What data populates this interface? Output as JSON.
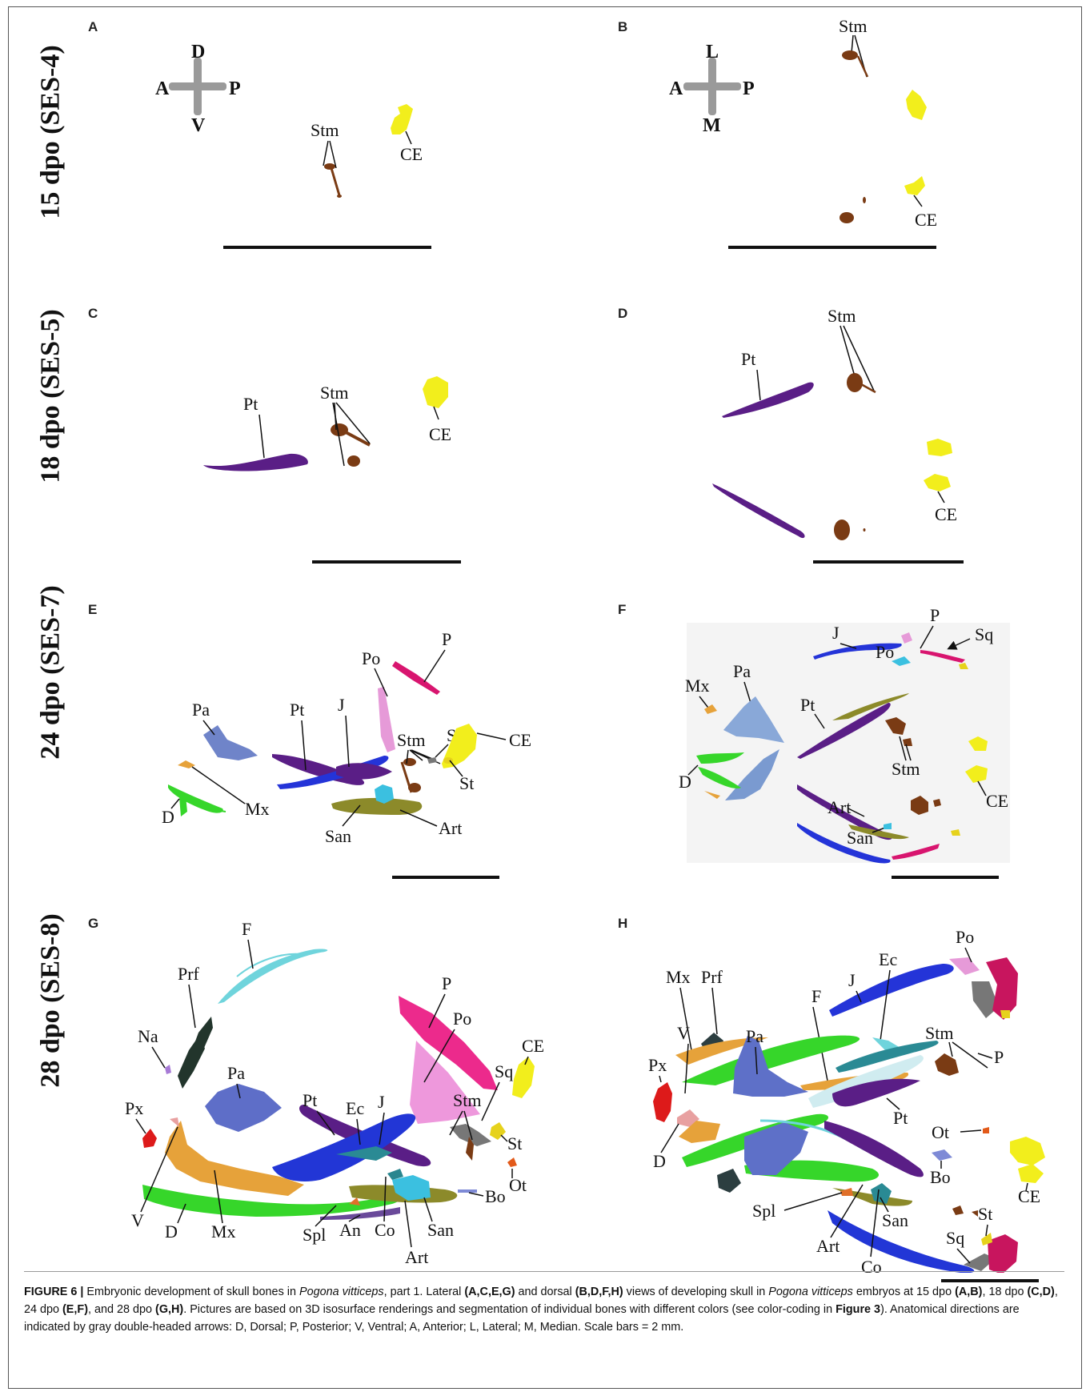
{
  "figure": {
    "row_labels": [
      "15 dpo (SES-4)",
      "18 dpo (SES-5)",
      "24 dpo (SES-7)",
      "28 dpo (SES-8)"
    ],
    "panel_letters": [
      "A",
      "B",
      "C",
      "D",
      "E",
      "F",
      "G",
      "H"
    ],
    "compass_lateral": {
      "top": "D",
      "bottom": "V",
      "left": "A",
      "right": "P"
    },
    "compass_dorsal": {
      "top": "L",
      "bottom": "M",
      "left": "A",
      "right": "P"
    },
    "labels": {
      "A": [
        "Stm",
        "CE"
      ],
      "B": [
        "Stm",
        "CE"
      ],
      "C": [
        "Pt",
        "Stm",
        "CE"
      ],
      "D": [
        "Pt",
        "Stm",
        "CE"
      ],
      "E": [
        "P",
        "Po",
        "Pa",
        "Pt",
        "J",
        "Stm",
        "Sq",
        "CE",
        "St",
        "D",
        "Mx",
        "San",
        "Art"
      ],
      "F": [
        "J",
        "P",
        "Sq",
        "Po",
        "Mx",
        "Pa",
        "Pt",
        "Stm",
        "D",
        "CE",
        "Art",
        "San"
      ],
      "G": [
        "F",
        "P",
        "Prf",
        "Po",
        "Na",
        "CE",
        "Pa",
        "Sq",
        "Stm",
        "Px",
        "Pt",
        "Ec",
        "J",
        "St",
        "Ot",
        "Bo",
        "V",
        "D",
        "Mx",
        "Spl",
        "An",
        "Co",
        "San",
        "Art"
      ],
      "H": [
        "Po",
        "J",
        "Ec",
        "Mx",
        "Prf",
        "F",
        "Pa",
        "Stm",
        "V",
        "P",
        "Px",
        "Pt",
        "Ot",
        "D",
        "Bo",
        "CE",
        "Spl",
        "San",
        "St",
        "Art",
        "Co",
        "Sq"
      ]
    },
    "bone_colors": {
      "Stm": "#7a3b14",
      "CE": "#f2ee1c",
      "Pt": "#5a1e86",
      "Pa": "#6f84c9",
      "Mx": "#e6a23a",
      "D": "#36d62a",
      "J": "#2434d8",
      "Po": "#e69ad8",
      "P": "#d8156f",
      "Sq": "#777777",
      "San": "#3bc0e0",
      "Art": "#8c8a2a",
      "F": "#6fd4dc",
      "Prf": "#22352c",
      "Na": "#a77ad6",
      "Px": "#dd1a1a",
      "V": "#e8a0a0",
      "Ec": "#2a8a94",
      "Co": "#29868f",
      "Bo": "#7e8ad6",
      "Ot": "#e25a1a",
      "St": "#e6d21c",
      "Spl": "#e0702a",
      "An": "#6a4a9a"
    }
  },
  "caption": {
    "title": "FIGURE 6 | ",
    "text": "Embryonic development of skull bones in Pogona vitticeps, part 1. Lateral (A,C,E,G) and dorsal (B,D,F,H) views of developing skull in Pogona vitticeps embryos at 15 dpo (A,B), 18 dpo (C,D), 24 dpo (E,F), and 28 dpo (G,H). Pictures are based on 3D isosurface renderings and segmentation of individual bones with different colors (see color-coding in Figure 3). Anatomical directions are indicated by gray double-headed arrows: D, Dorsal; P, Posterior; V, Ventral; A, Anterior; L, Lateral; M, Median. Scale bars = 2 mm.",
    "segments": {
      "s1": "Embryonic development of skull bones in ",
      "species": "Pogona vitticeps",
      "s2": ", part 1. Lateral ",
      "b1": "(A,C,E,G)",
      "s3": " and dorsal ",
      "b2": "(B,D,F,H)",
      "s4": " views of developing skull in ",
      "s5": " embryos at 15 dpo ",
      "b3": "(A,B)",
      "s6": ", 18 dpo ",
      "b4": "(C,D)",
      "s7": ", 24 dpo ",
      "b5": "(E,F)",
      "s8": ", and 28 dpo ",
      "b6": "(G,H)",
      "s9": ". Pictures are based on 3D isosurface renderings and segmentation of individual bones with different colors (see color-coding in ",
      "b7": "Figure 3",
      "s10": "). Anatomical directions are indicated by gray double-headed arrows: D, Dorsal; P, Posterior; V, Ventral; A, Anterior; L, Lateral; M, Median. Scale bars = 2 mm."
    }
  }
}
